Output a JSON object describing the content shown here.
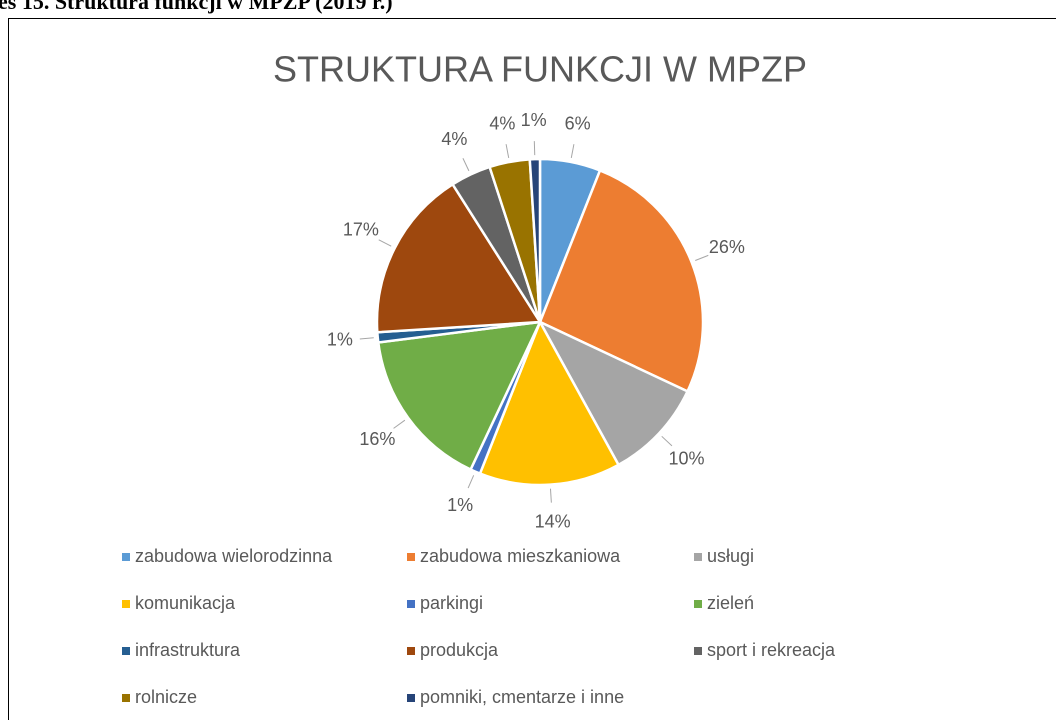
{
  "caption": "es 15. Struktura funkcji w MPZP (2019 r.)",
  "chart_data": {
    "type": "pie",
    "title": "STRUKTURA FUNKCJI W MPZP",
    "categories": [
      "zabudowa wielorodzinna",
      "zabudowa mieszkaniowa",
      "usługi",
      "komunikacja",
      "parkingi",
      "zieleń",
      "infrastruktura",
      "produkcja",
      "sport i rekreacja",
      "rolnicze",
      "pomniki, cmentarze  i inne"
    ],
    "values": [
      6,
      26,
      10,
      14,
      1,
      16,
      1,
      17,
      4,
      4,
      1
    ],
    "value_labels": [
      "6%",
      "26%",
      "10%",
      "14%",
      "1%",
      "16%",
      "1%",
      "17%",
      "4%",
      "4%",
      "1%"
    ],
    "colors": [
      "#5b9bd5",
      "#ed7d31",
      "#a5a5a5",
      "#ffc000",
      "#4472c4",
      "#70ad47",
      "#255e91",
      "#9e480e",
      "#636363",
      "#997300",
      "#264478"
    ],
    "legend": "bottom"
  }
}
